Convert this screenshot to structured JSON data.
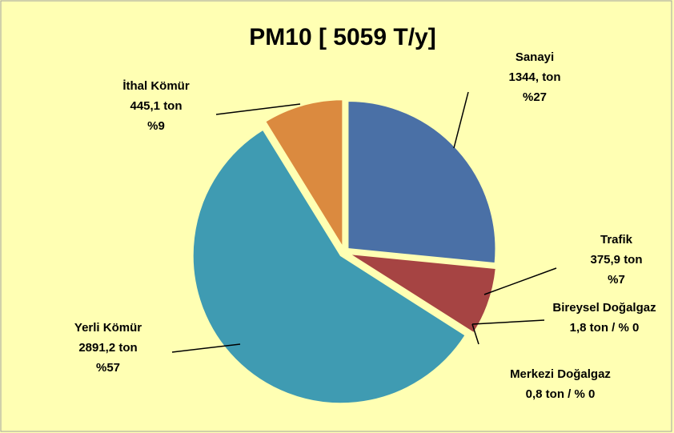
{
  "chart_data": {
    "type": "pie",
    "title": "PM10 [ 5059 T/y]",
    "categories": [
      "Sanayi",
      "Trafik",
      "Bireysel Doğalgaz",
      "Merkezi Doğalgaz",
      "Yerli Kömür",
      "İthal Kömür"
    ],
    "values": [
      1344,
      375.9,
      1.8,
      0.8,
      2891.2,
      445.1
    ],
    "value_labels": [
      "1344, ton",
      "375,9  ton",
      "1,8  ton   /  % 0",
      "0,8  ton   /  % 0",
      "2891,2 ton",
      "445,1 ton"
    ],
    "percents": [
      27,
      7,
      0,
      0,
      57,
      9
    ],
    "percent_labels": [
      "%27",
      "%7",
      null,
      null,
      "%57",
      "%9"
    ],
    "colors": [
      "#4a70a6",
      "#a64443",
      "#8ba34c",
      "#6e5490",
      "#3f9bb2",
      "#db8a3f"
    ]
  }
}
